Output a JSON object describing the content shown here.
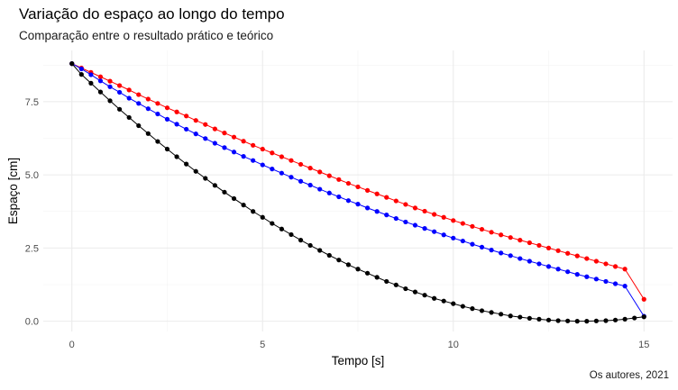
{
  "chart_data": {
    "type": "line",
    "title": "Variação do espaço ao longo do tempo",
    "subtitle": "Comparação entre o resultado prático e teórico",
    "xlabel": "Tempo [s]",
    "ylabel": "Espaço [cm]",
    "caption": "Os autores, 2021",
    "xlim": [
      -0.75,
      15.75
    ],
    "ylim": [
      -0.35,
      9.25
    ],
    "x_ticks": [
      0,
      5,
      10,
      15
    ],
    "x_tick_labels": [
      "0",
      "5",
      "10",
      "15"
    ],
    "y_ticks": [
      0.0,
      2.5,
      5.0,
      7.5
    ],
    "y_tick_labels": [
      "0.0",
      "2.5",
      "5.0",
      "7.5"
    ],
    "grid": true,
    "legend": "none",
    "series": [
      {
        "color": "#ff0000",
        "x": [
          0,
          0.25,
          0.5,
          0.75,
          1,
          1.25,
          1.5,
          1.75,
          2,
          2.25,
          2.5,
          2.75,
          3,
          3.25,
          3.5,
          3.75,
          4,
          4.25,
          4.5,
          4.75,
          5,
          5.25,
          5.5,
          5.75,
          6,
          6.25,
          6.5,
          6.75,
          7,
          7.25,
          7.5,
          7.75,
          8,
          8.25,
          8.5,
          8.75,
          9,
          9.25,
          9.5,
          9.75,
          10,
          10.25,
          10.5,
          10.75,
          11,
          11.25,
          11.5,
          11.75,
          12,
          12.25,
          12.5,
          12.75,
          13,
          13.25,
          13.5,
          13.75,
          14,
          14.25,
          14.5,
          15
        ],
        "values": [
          8.8,
          8.65,
          8.5,
          8.35,
          8.2,
          8.05,
          7.9,
          7.74,
          7.59,
          7.44,
          7.29,
          7.15,
          7.01,
          6.86,
          6.72,
          6.57,
          6.43,
          6.29,
          6.15,
          6.01,
          5.88,
          5.75,
          5.62,
          5.49,
          5.36,
          5.23,
          5.1,
          4.97,
          4.84,
          4.71,
          4.59,
          4.47,
          4.35,
          4.23,
          4.11,
          3.99,
          3.87,
          3.76,
          3.65,
          3.55,
          3.44,
          3.34,
          3.24,
          3.14,
          3.04,
          2.95,
          2.86,
          2.77,
          2.68,
          2.59,
          2.5,
          2.41,
          2.32,
          2.23,
          2.14,
          2.05,
          1.96,
          1.87,
          1.78,
          0.75
        ]
      },
      {
        "color": "#0000ff",
        "x": [
          0,
          0.25,
          0.5,
          0.75,
          1,
          1.25,
          1.5,
          1.75,
          2,
          2.25,
          2.5,
          2.75,
          3,
          3.25,
          3.5,
          3.75,
          4,
          4.25,
          4.5,
          4.75,
          5,
          5.25,
          5.5,
          5.75,
          6,
          6.25,
          6.5,
          6.75,
          7,
          7.25,
          7.5,
          7.75,
          8,
          8.25,
          8.5,
          8.75,
          9,
          9.25,
          9.5,
          9.75,
          10,
          10.25,
          10.5,
          10.75,
          11,
          11.25,
          11.5,
          11.75,
          12,
          12.25,
          12.5,
          12.75,
          13,
          13.25,
          13.5,
          13.75,
          14,
          14.25,
          14.5,
          15
        ],
        "values": [
          8.8,
          8.62,
          8.42,
          8.21,
          8.01,
          7.82,
          7.62,
          7.44,
          7.26,
          7.08,
          6.9,
          6.73,
          6.56,
          6.4,
          6.24,
          6.08,
          5.93,
          5.78,
          5.63,
          5.49,
          5.34,
          5.2,
          5.06,
          4.92,
          4.78,
          4.65,
          4.51,
          4.38,
          4.25,
          4.12,
          4.0,
          3.87,
          3.75,
          3.63,
          3.51,
          3.39,
          3.28,
          3.17,
          3.06,
          2.95,
          2.84,
          2.74,
          2.63,
          2.53,
          2.43,
          2.33,
          2.24,
          2.14,
          2.05,
          1.96,
          1.87,
          1.78,
          1.69,
          1.6,
          1.52,
          1.44,
          1.36,
          1.28,
          1.2,
          0.17
        ]
      },
      {
        "color": "#000000",
        "x": [
          0,
          0.25,
          0.5,
          0.75,
          1,
          1.25,
          1.5,
          1.75,
          2,
          2.25,
          2.5,
          2.75,
          3,
          3.25,
          3.5,
          3.75,
          4,
          4.25,
          4.5,
          4.75,
          5,
          5.25,
          5.5,
          5.75,
          6,
          6.25,
          6.5,
          6.75,
          7,
          7.25,
          7.5,
          7.75,
          8,
          8.25,
          8.5,
          8.75,
          9,
          9.25,
          9.5,
          9.75,
          10,
          10.25,
          10.5,
          10.75,
          11,
          11.25,
          11.5,
          11.75,
          12,
          12.25,
          12.5,
          12.75,
          13,
          13.25,
          13.5,
          13.75,
          14,
          14.25,
          14.5,
          14.75,
          15
        ],
        "values": [
          8.8,
          8.43,
          8.13,
          7.83,
          7.53,
          7.24,
          6.96,
          6.68,
          6.41,
          6.14,
          5.88,
          5.62,
          5.37,
          5.12,
          4.88,
          4.64,
          4.41,
          4.19,
          3.97,
          3.75,
          3.55,
          3.34,
          3.15,
          2.96,
          2.77,
          2.59,
          2.42,
          2.25,
          2.09,
          1.93,
          1.78,
          1.64,
          1.5,
          1.36,
          1.24,
          1.11,
          1.0,
          0.89,
          0.78,
          0.69,
          0.6,
          0.51,
          0.43,
          0.36,
          0.3,
          0.24,
          0.18,
          0.14,
          0.1,
          0.07,
          0.04,
          0.02,
          0.01,
          0.0,
          0.0,
          0.01,
          0.02,
          0.04,
          0.07,
          0.11,
          0.15
        ]
      }
    ]
  }
}
